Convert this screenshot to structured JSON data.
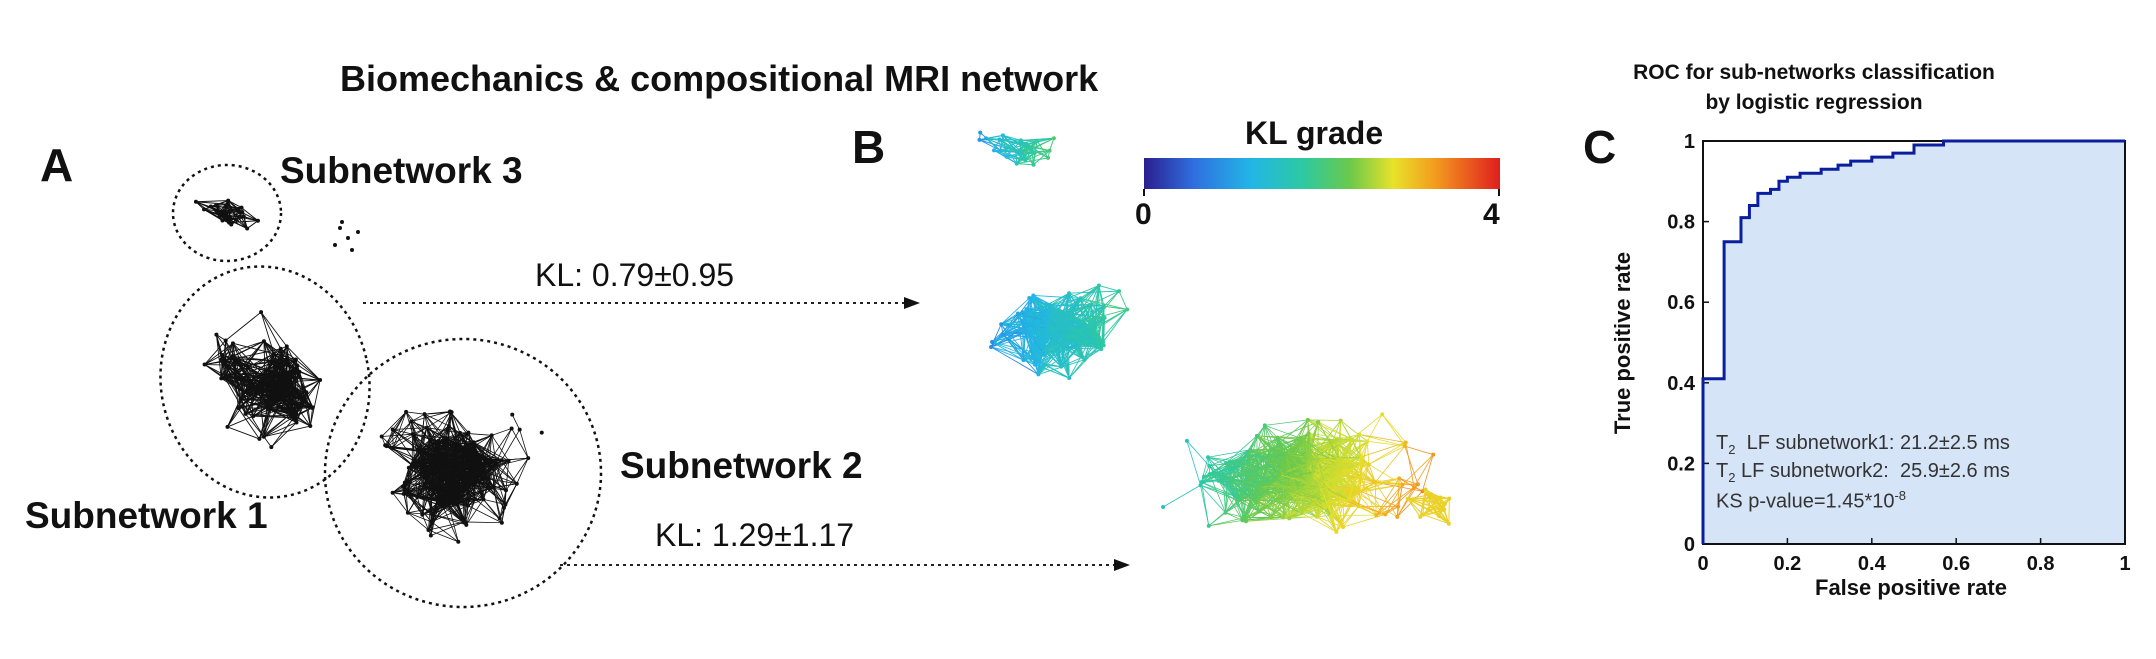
{
  "figure": {
    "title": "Biomechanics & compositional MRI network",
    "panel_a": {
      "letter": "A",
      "subnetwork1": "Subnetwork 1",
      "subnetwork2": "Subnetwork 2",
      "subnetwork3": "Subnetwork 3",
      "kl1": "KL: 0.79±0.95",
      "kl2": "KL: 1.29±1.17"
    },
    "panel_b": {
      "letter": "B",
      "colorbar_title": "KL grade",
      "colorbar_min": "0",
      "colorbar_max": "4",
      "colormap": [
        "#2b1f8f",
        "#2f6fe0",
        "#22b6e6",
        "#2ec9a0",
        "#6cc94a",
        "#e8e22a",
        "#f39a1e",
        "#e01e1e"
      ]
    },
    "panel_c": {
      "letter": "C",
      "title_line1": "ROC for sub-networks classification",
      "title_line2": "by logistic regression",
      "notes": {
        "line1_prefix": "T",
        "line1_sub": "2",
        "line1_rest": "  LF subnetwork1: 21.2±2.5 ms",
        "line2_prefix": "T",
        "line2_sub": "2",
        "line2_rest": " LF subnetwork2:  25.9±2.6 ms",
        "line3_prefix": "KS p-value=1.45*10",
        "line3_sup": "-8"
      }
    }
  },
  "chart_data": {
    "type": "line",
    "title": "ROC for sub-networks classification by logistic regression",
    "xlabel": "False positive rate",
    "ylabel": "True positive rate",
    "xlim": [
      0,
      1
    ],
    "ylim": [
      0,
      1
    ],
    "xticks": [
      "0",
      "0.2",
      "0.4",
      "0.6",
      "0.8",
      "1"
    ],
    "yticks": [
      "0",
      "0.2",
      "0.4",
      "0.6",
      "0.8",
      "1"
    ],
    "grid": false,
    "line_color": "#0a1f9e",
    "fill_color": "#d6e4f7",
    "series": [
      {
        "x": [
          0,
          0,
          0.05,
          0.05,
          0.09,
          0.09,
          0.11,
          0.11,
          0.13,
          0.13,
          0.16,
          0.16,
          0.18,
          0.18,
          0.2,
          0.2,
          0.23,
          0.23,
          0.28,
          0.28,
          0.32,
          0.32,
          0.35,
          0.35,
          0.4,
          0.4,
          0.45,
          0.45,
          0.5,
          0.5,
          0.57,
          0.57,
          0.8,
          0.8,
          1
        ],
        "y": [
          0,
          0.41,
          0.41,
          0.75,
          0.75,
          0.81,
          0.81,
          0.84,
          0.84,
          0.87,
          0.87,
          0.88,
          0.88,
          0.9,
          0.9,
          0.91,
          0.91,
          0.92,
          0.92,
          0.93,
          0.93,
          0.94,
          0.94,
          0.95,
          0.95,
          0.96,
          0.96,
          0.97,
          0.97,
          0.99,
          0.99,
          1.0,
          1.0,
          1.0,
          1.0
        ]
      }
    ]
  }
}
